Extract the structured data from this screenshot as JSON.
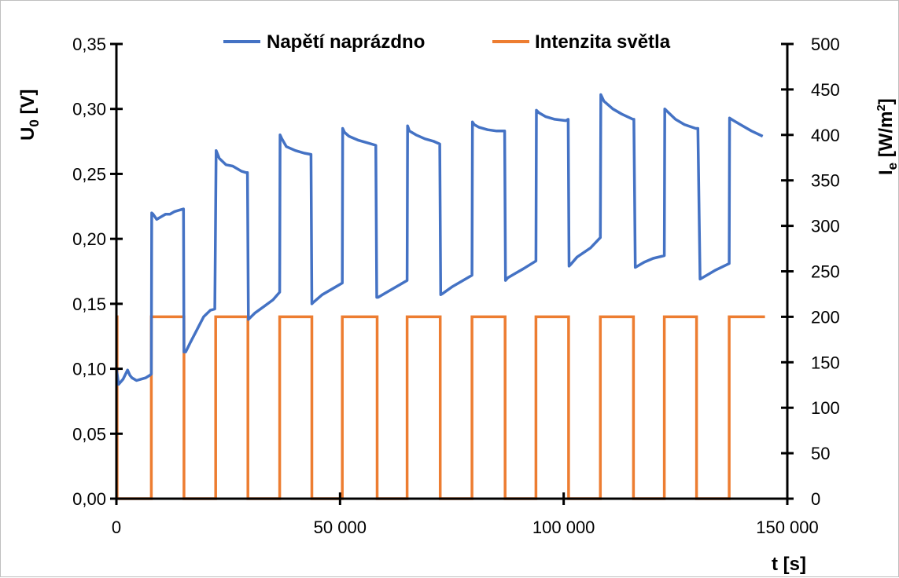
{
  "chart_data": {
    "type": "line",
    "xlabel": "t [s]",
    "ylabel_left": {
      "main": "U",
      "sub": "0",
      "tail": " [V]"
    },
    "ylabel_right": {
      "main": "I",
      "sub": "e",
      "tail": " [W/m",
      "sup": "2",
      "end": "]"
    },
    "xlim": [
      0,
      150000
    ],
    "ylim_left": [
      0,
      0.35
    ],
    "ylim_right": [
      0,
      500
    ],
    "x_ticks": [
      0,
      50000,
      100000,
      150000
    ],
    "x_tick_labels": [
      "0",
      "50 000",
      "100 000",
      "150 000"
    ],
    "left_ticks": [
      0,
      0.05,
      0.1,
      0.15,
      0.2,
      0.25,
      0.3,
      0.35
    ],
    "left_tick_labels": [
      "0,00",
      "0,05",
      "0,10",
      "0,15",
      "0,20",
      "0,25",
      "0,30",
      "0,35"
    ],
    "right_ticks": [
      0,
      50,
      100,
      150,
      200,
      250,
      300,
      350,
      400,
      450,
      500
    ],
    "right_tick_labels": [
      "0",
      "50",
      "100",
      "150",
      "200",
      "250",
      "300",
      "350",
      "400",
      "450",
      "500"
    ],
    "grid": false,
    "legend_position": "top",
    "series": [
      {
        "name": "Napětí naprázdno",
        "axis": "left",
        "color": "#4472C4",
        "x": [
          0,
          500,
          1500,
          2500,
          3000,
          3500,
          4500,
          5500,
          6500,
          7500,
          7800,
          7900,
          8200,
          9000,
          10000,
          11000,
          12000,
          13000,
          14000,
          15000,
          15100,
          15500,
          16500,
          18000,
          19500,
          21000,
          22000,
          22300,
          23000,
          24500,
          26000,
          28000,
          29000,
          29300,
          29500,
          31000,
          33000,
          35000,
          36500,
          36600,
          37000,
          38000,
          40000,
          42000,
          43500,
          43700,
          44000,
          46000,
          48000,
          50500,
          50600,
          51000,
          52000,
          54000,
          56000,
          58000,
          58200,
          58500,
          60000,
          62000,
          65000,
          65100,
          65500,
          67000,
          69000,
          71000,
          72300,
          72500,
          73000,
          75000,
          77000,
          79500,
          79600,
          80000,
          81000,
          83000,
          85000,
          86800,
          87000,
          87500,
          89000,
          91000,
          93800,
          93900,
          94500,
          96000,
          98000,
          100500,
          101000,
          101200,
          101500,
          103000,
          106000,
          108200,
          108300,
          109000,
          111000,
          113000,
          115500,
          115700,
          116000,
          118000,
          120000,
          122500,
          122600,
          123500,
          125000,
          127000,
          129500,
          130000,
          130500,
          132000,
          134000,
          137000,
          137100,
          138000,
          140000,
          142000,
          144500
        ],
        "y": [
          0.1,
          0.088,
          0.092,
          0.099,
          0.095,
          0.093,
          0.091,
          0.092,
          0.093,
          0.095,
          0.096,
          0.22,
          0.219,
          0.215,
          0.217,
          0.219,
          0.219,
          0.221,
          0.222,
          0.223,
          0.113,
          0.113,
          0.12,
          0.13,
          0.14,
          0.145,
          0.146,
          0.268,
          0.262,
          0.257,
          0.256,
          0.252,
          0.251,
          0.251,
          0.138,
          0.143,
          0.148,
          0.153,
          0.159,
          0.28,
          0.277,
          0.271,
          0.268,
          0.266,
          0.265,
          0.15,
          0.151,
          0.157,
          0.161,
          0.166,
          0.285,
          0.282,
          0.279,
          0.276,
          0.274,
          0.272,
          0.155,
          0.155,
          0.158,
          0.162,
          0.168,
          0.287,
          0.283,
          0.28,
          0.277,
          0.275,
          0.273,
          0.157,
          0.158,
          0.163,
          0.167,
          0.172,
          0.29,
          0.288,
          0.286,
          0.284,
          0.283,
          0.283,
          0.168,
          0.17,
          0.173,
          0.177,
          0.183,
          0.299,
          0.297,
          0.294,
          0.292,
          0.291,
          0.292,
          0.179,
          0.18,
          0.186,
          0.193,
          0.201,
          0.311,
          0.306,
          0.3,
          0.296,
          0.292,
          0.292,
          0.178,
          0.182,
          0.185,
          0.187,
          0.3,
          0.297,
          0.292,
          0.288,
          0.285,
          0.285,
          0.169,
          0.172,
          0.176,
          0.181,
          0.293,
          0.291,
          0.287,
          0.283,
          0.279
        ]
      },
      {
        "name": "Intenzita světla",
        "axis": "right",
        "color": "#ED7D31",
        "on_off_periods": [
          [
            0,
            150
          ],
          [
            7800,
            15100
          ],
          [
            22200,
            29400
          ],
          [
            36500,
            43700
          ],
          [
            50500,
            58300
          ],
          [
            65000,
            72400
          ],
          [
            79500,
            86900
          ],
          [
            93800,
            101100
          ],
          [
            108200,
            115600
          ],
          [
            122500,
            129700
          ],
          [
            137000,
            145000
          ]
        ],
        "on_value": 200,
        "off_value": 0,
        "x_end": 145000
      }
    ]
  }
}
